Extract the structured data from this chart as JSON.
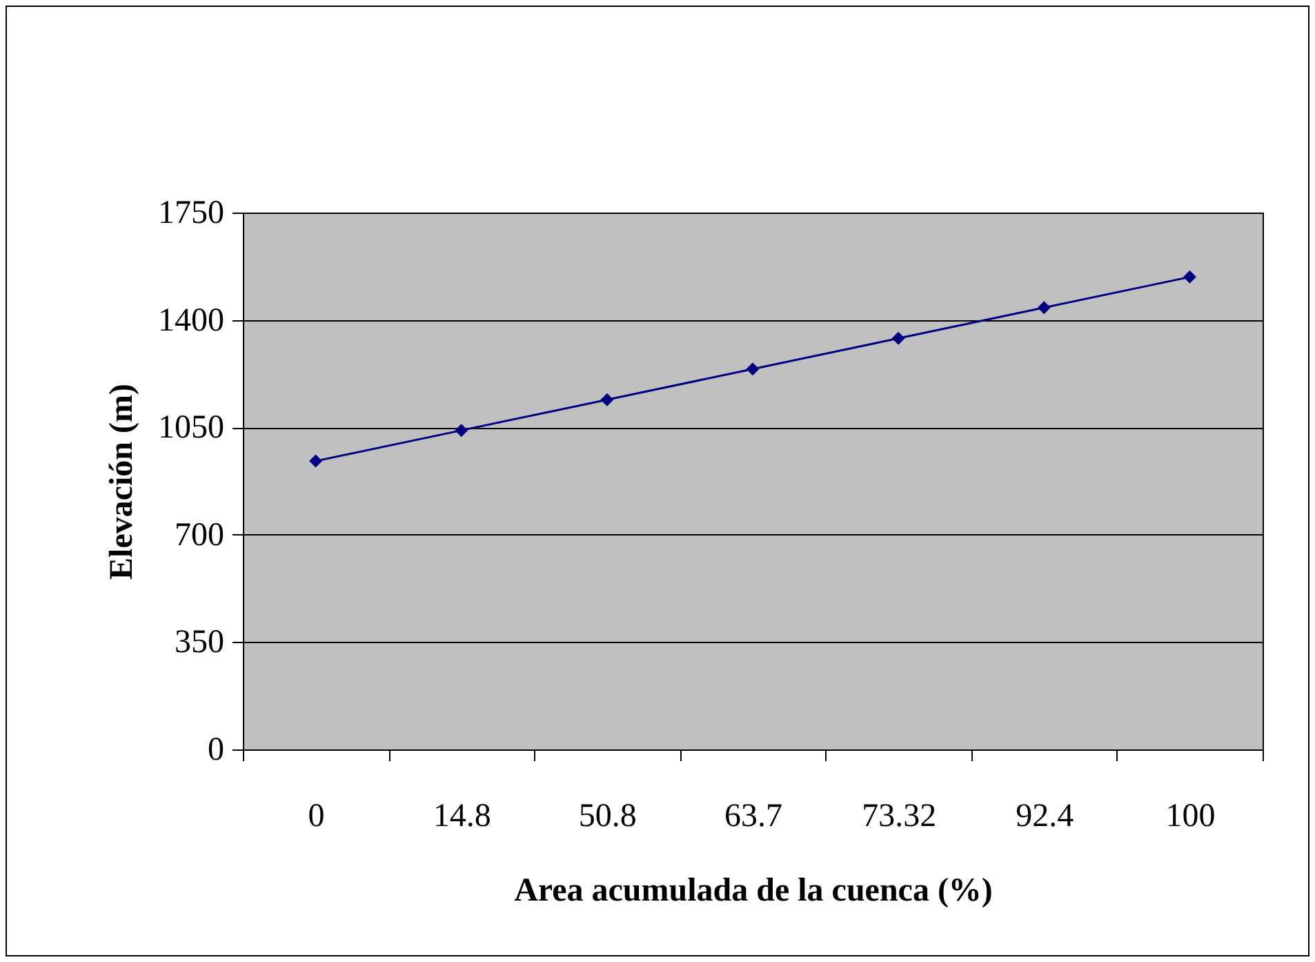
{
  "chart_data": {
    "type": "line",
    "xlabel": "Area acumulada de la cuenca (%)",
    "ylabel": "Elevación (m)",
    "categories": [
      "0",
      "14.8",
      "50.8",
      "63.7",
      "73.32",
      "92.4",
      "100"
    ],
    "series": [
      {
        "color": "#000080",
        "values": [
          940,
          1040,
          1140,
          1240,
          1340,
          1440,
          1540
        ]
      }
    ],
    "ylim": [
      0,
      1750
    ],
    "yticks": [
      0,
      350,
      700,
      1050,
      1400,
      1750
    ],
    "grid": "y",
    "legend": false,
    "marker": "diamond",
    "line_style": "solid"
  }
}
